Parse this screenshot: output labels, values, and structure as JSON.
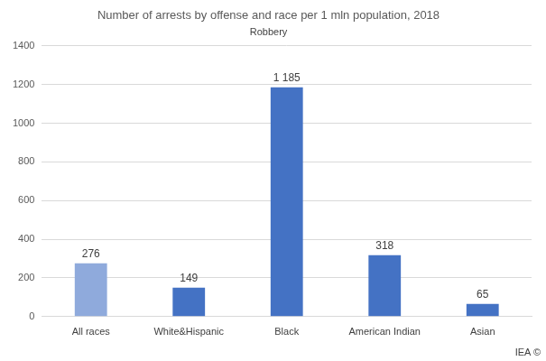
{
  "chart_data": {
    "type": "bar",
    "title": "Number of arrests by offense and race per 1 mln population, 2018",
    "subtitle": "Robbery",
    "categories": [
      "All races",
      "White&Hispanic",
      "Black",
      "American Indian",
      "Asian"
    ],
    "values": [
      276,
      149,
      1185,
      318,
      65
    ],
    "value_labels": [
      "276",
      "149",
      "1 185",
      "318",
      "65"
    ],
    "colors": [
      "#8faadc",
      "#4472c4",
      "#4472c4",
      "#4472c4",
      "#4472c4"
    ],
    "ylim": [
      0,
      1400
    ],
    "yticks": [
      0,
      200,
      400,
      600,
      800,
      1000,
      1200,
      1400
    ],
    "grid": true,
    "data_labels": true,
    "annotations": [
      "IEA ©"
    ]
  }
}
